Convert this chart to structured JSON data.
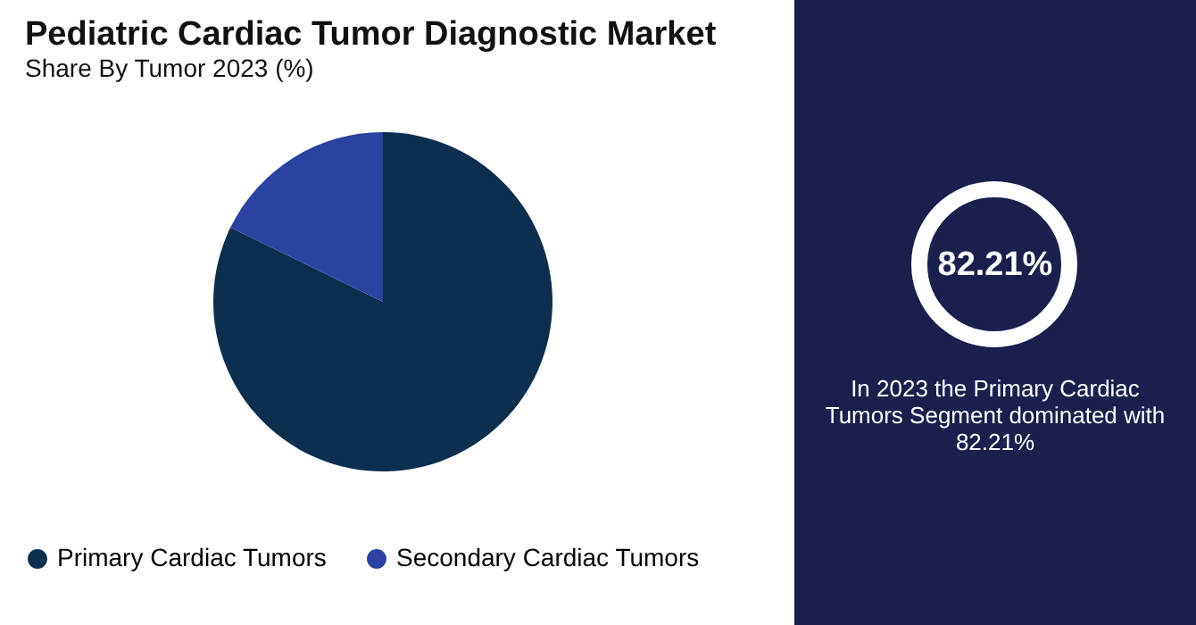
{
  "chart_data": {
    "type": "pie",
    "title": "Pediatric Cardiac Tumor Diagnostic Market",
    "subtitle": "Share By Tumor 2023 (%)",
    "categories": [
      "Primary Cardiac Tumors",
      "Secondary Cardiac Tumors"
    ],
    "values": [
      82.21,
      17.79
    ],
    "colors": [
      "#0c2f4f",
      "#2b42a0"
    ],
    "legend": "bottom",
    "annotations": [
      "82.21%",
      "In 2023 the Primary Cardiac Tumors Segment dominated with 82.21%"
    ]
  }
}
